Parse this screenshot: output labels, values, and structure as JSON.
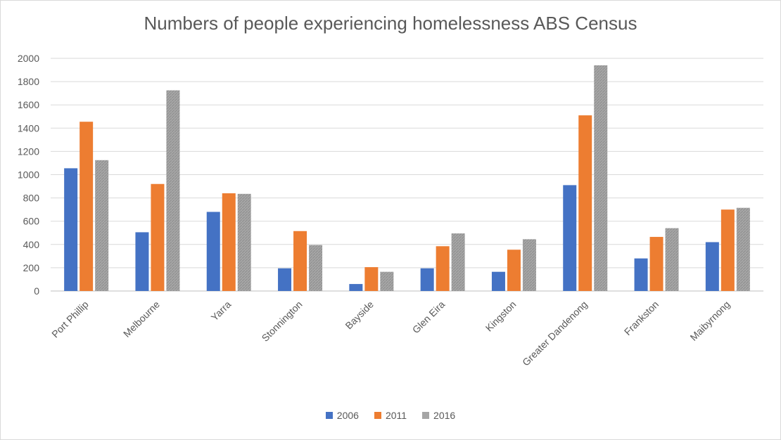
{
  "chart_data": {
    "type": "bar",
    "title": "Numbers of people experiencing homelessness ABS Census",
    "xlabel": "",
    "ylabel": "",
    "ylim": [
      0,
      2000
    ],
    "yticks": [
      0,
      200,
      400,
      600,
      800,
      1000,
      1200,
      1400,
      1600,
      1800,
      2000
    ],
    "grid": true,
    "legend_position": "bottom",
    "categories": [
      "Port Phillip",
      "Melbourne",
      "Yarra",
      "Stonnington",
      "Bayside",
      "Glen Eira",
      "Kingston",
      "Greater Dandenong",
      "Frankston",
      "Maibyrnong"
    ],
    "series": [
      {
        "name": "2006",
        "color": "#4472C4",
        "pattern": "solid",
        "values": [
          1055,
          505,
          680,
          195,
          60,
          195,
          165,
          910,
          280,
          420
        ]
      },
      {
        "name": "2011",
        "color": "#ED7D31",
        "pattern": "solid",
        "values": [
          1455,
          920,
          840,
          515,
          205,
          385,
          355,
          1510,
          465,
          700
        ]
      },
      {
        "name": "2016",
        "color": "#A5A5A5",
        "pattern": "textured",
        "values": [
          1125,
          1725,
          835,
          395,
          165,
          495,
          445,
          1940,
          540,
          715
        ]
      }
    ]
  }
}
